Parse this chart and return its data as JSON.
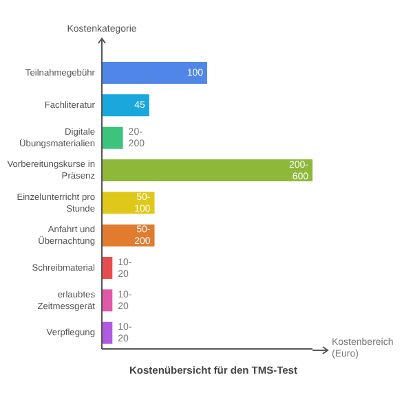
{
  "chart_data": {
    "type": "bar",
    "orientation": "horizontal",
    "title": "Kostenübersicht für den TMS-Test",
    "xlabel": "Kostenbereich (Euro)",
    "ylabel": "Kostenkategorie",
    "categories": [
      "Teilnahmegebühr",
      "Fachliteratur",
      "Digitale Übungsmaterialien",
      "Vorbereitungskurse in Präsenz",
      "Einzelunterricht pro Stunde",
      "Anfahrt und Übernachtung",
      "Schreibmaterial",
      "erlaubtes Zeitmessgerät",
      "Verpflegung"
    ],
    "values": [
      100,
      45,
      20,
      200,
      50,
      50,
      10,
      10,
      10
    ],
    "colors": [
      "#4f86e8",
      "#1aa7dc",
      "#3cc47c",
      "#8db83a",
      "#e0c81a",
      "#e07b30",
      "#e84d4d",
      "#e05aa8",
      "#b05ae0"
    ],
    "value_labels": [
      "100",
      "45",
      "20-200",
      "200-600",
      "50-100",
      "50-200",
      "10-20",
      "10-20",
      "10-20"
    ]
  }
}
